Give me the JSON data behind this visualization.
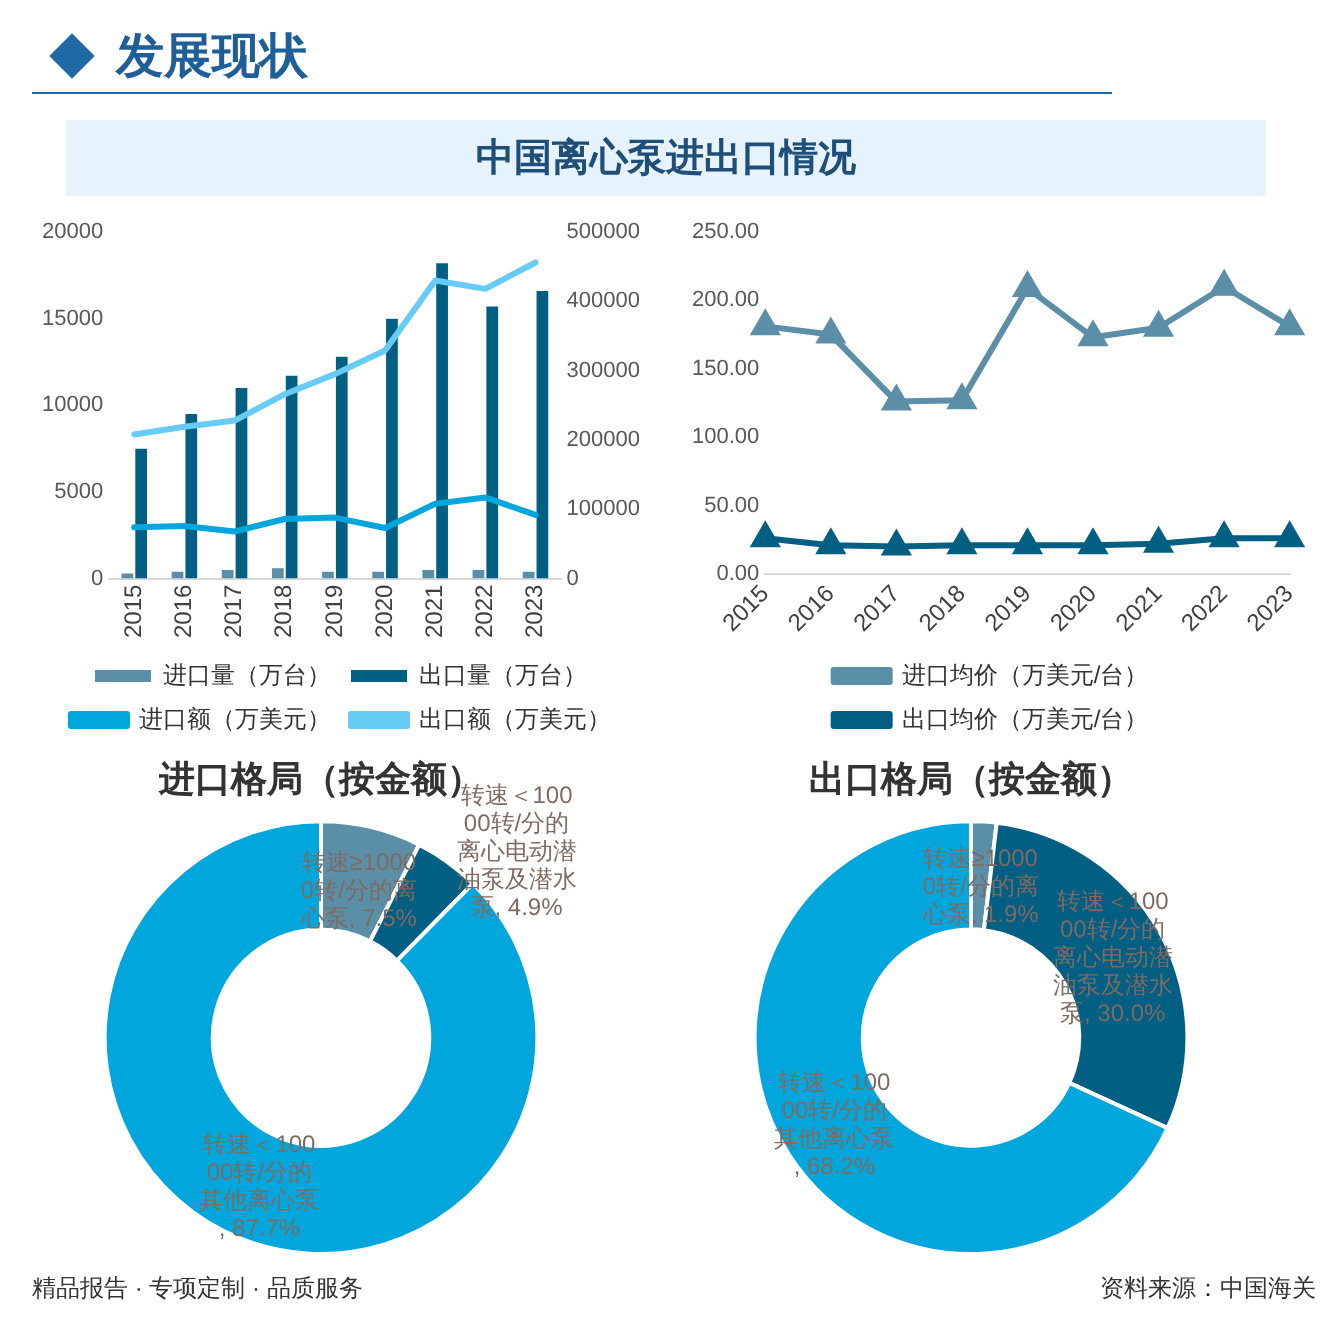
{
  "chart_data": [
    {
      "type": "other",
      "title": "发展现状",
      "subtitle": "中国离心泵进出口情况",
      "annotations": [
        "精品报告 · 专项定制 · 品质服务",
        "资料来源：中国海关"
      ]
    },
    {
      "type": "bar",
      "categories": [
        "2015",
        "2016",
        "2017",
        "2018",
        "2019",
        "2020",
        "2021",
        "2022",
        "2023"
      ],
      "series": [
        {
          "name": "进口量（万台）",
          "color": "#5b8fa8",
          "values": [
            300,
            400,
            500,
            600,
            400,
            400,
            500,
            500,
            400
          ]
        },
        {
          "name": "出口量（万台）",
          "color": "#005f83",
          "values": [
            7500,
            9500,
            11000,
            11700,
            12800,
            15000,
            18200,
            15700,
            16600
          ]
        },
        {
          "name": "进口额（万美元）",
          "type": "line",
          "axis": "y2",
          "color": "#00a6dc",
          "values": [
            74000,
            76000,
            68000,
            86000,
            88000,
            73000,
            108000,
            117000,
            92000
          ]
        },
        {
          "name": "出口额（万美元）",
          "type": "line",
          "axis": "y2",
          "color": "#66ccf5",
          "values": [
            208000,
            219000,
            228000,
            266000,
            295000,
            329000,
            430000,
            418000,
            456000
          ]
        }
      ],
      "ylim": [
        0,
        20000
      ],
      "yticks": [
        0,
        5000,
        10000,
        15000,
        20000
      ],
      "y2lim": [
        0,
        500000
      ],
      "y2ticks": [
        0,
        100000,
        200000,
        300000,
        400000,
        500000
      ],
      "marker": "none",
      "legend": "bottom"
    },
    {
      "type": "line",
      "categories": [
        "2015",
        "2016",
        "2017",
        "2018",
        "2019",
        "2020",
        "2021",
        "2022",
        "2023"
      ],
      "series": [
        {
          "name": "进口均价（万美元/台）",
          "color": "#5b8fa8",
          "values": [
            181,
            175,
            126,
            127,
            209,
            173,
            180,
            210,
            181
          ]
        },
        {
          "name": "出口均价（万美元/台）",
          "color": "#005f83",
          "values": [
            26,
            21,
            20,
            21,
            21,
            21,
            22,
            26,
            26
          ]
        }
      ],
      "ylim": [
        0,
        250
      ],
      "yticks": [
        {
          "value": 0,
          "label": "0.00"
        },
        {
          "value": 50,
          "label": "50.00"
        },
        {
          "value": 100,
          "label": "100.00"
        },
        {
          "value": 150,
          "label": "150.00"
        },
        {
          "value": 200,
          "label": "200.00"
        },
        {
          "value": 250,
          "label": "250.00"
        }
      ],
      "marker": "triangle",
      "legend": "bottom"
    },
    {
      "type": "donut",
      "title": "进口格局（按金额）",
      "categories": [
        "转速≥10000转/分的离心泵",
        "转速＜10000转/分的离心电动潜油泵及潜水泵",
        "转速＜10000转/分的其他离心泵"
      ],
      "values": [
        7.5,
        4.9,
        87.7
      ],
      "value_labels": [
        ", 7.5%",
        ", 4.9%",
        ", 87.7%"
      ],
      "colors": [
        "#5b8fa8",
        "#005f83",
        "#00a6dc"
      ]
    },
    {
      "type": "donut",
      "title": "出口格局（按金额）",
      "categories": [
        "转速≥10000转/分的离心泵",
        "转速＜10000转/分的离心电动潜油泵及潜水泵",
        "转速＜10000转/分的其他离心泵"
      ],
      "values": [
        1.9,
        30.0,
        68.2
      ],
      "value_labels": [
        ", 1.9%",
        ", 30.0%",
        ", 68.2%"
      ],
      "colors": [
        "#5b8fa8",
        "#005f83",
        "#00a6dc"
      ]
    }
  ]
}
